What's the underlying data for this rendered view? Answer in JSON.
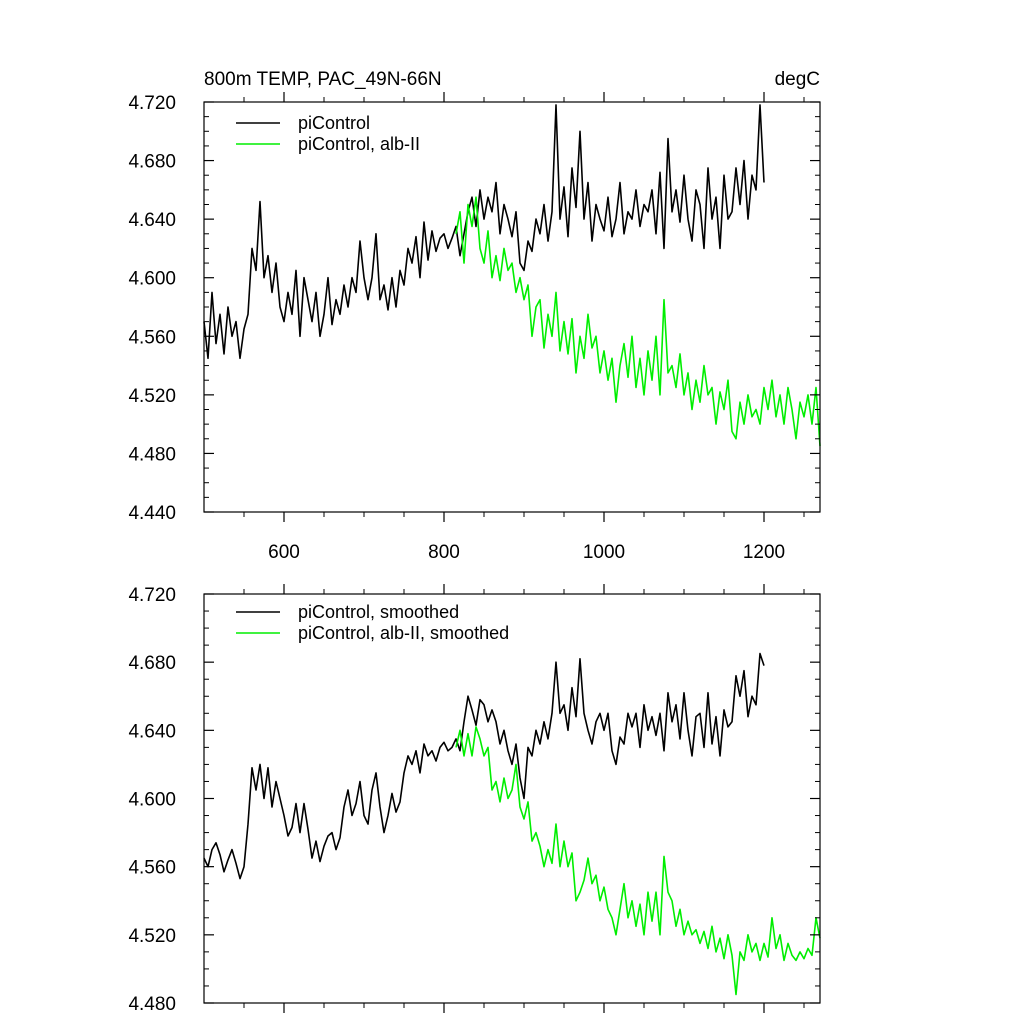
{
  "colors": {
    "control": "#000000",
    "alb": "#00ee00",
    "axis": "#000000",
    "background": "#ffffff"
  },
  "chart_data": [
    {
      "type": "line",
      "title": "800m TEMP, PAC_49N-66N",
      "units": "degC",
      "xlim": [
        500,
        1270
      ],
      "ylim": [
        4.44,
        4.72
      ],
      "x_ticks": [
        600,
        800,
        1000,
        1200
      ],
      "x_tick_labels": [
        "600",
        "800",
        "1000",
        "1200"
      ],
      "y_ticks": [
        4.44,
        4.48,
        4.52,
        4.56,
        4.6,
        4.64,
        4.68,
        4.72
      ],
      "y_tick_labels": [
        "4.440",
        "4.480",
        "4.520",
        "4.560",
        "4.600",
        "4.640",
        "4.680",
        "4.720"
      ],
      "legend_position": "top-left",
      "series": [
        {
          "name": "piControl",
          "color": "#000000",
          "x": [
            500,
            505,
            510,
            515,
            520,
            525,
            530,
            535,
            540,
            545,
            550,
            555,
            560,
            565,
            570,
            575,
            580,
            585,
            590,
            595,
            600,
            605,
            610,
            615,
            620,
            625,
            630,
            635,
            640,
            645,
            650,
            655,
            660,
            665,
            670,
            675,
            680,
            685,
            690,
            695,
            700,
            705,
            710,
            715,
            720,
            725,
            730,
            735,
            740,
            745,
            750,
            755,
            760,
            765,
            770,
            775,
            780,
            785,
            790,
            795,
            800,
            805,
            810,
            815,
            820,
            825,
            830,
            835,
            840,
            845,
            850,
            855,
            860,
            865,
            870,
            875,
            880,
            885,
            890,
            895,
            900,
            905,
            910,
            915,
            920,
            925,
            930,
            935,
            940,
            945,
            950,
            955,
            960,
            965,
            970,
            975,
            980,
            985,
            990,
            995,
            1000,
            1005,
            1010,
            1015,
            1020,
            1025,
            1030,
            1035,
            1040,
            1045,
            1050,
            1055,
            1060,
            1065,
            1070,
            1075,
            1080,
            1085,
            1090,
            1095,
            1100,
            1105,
            1110,
            1115,
            1120,
            1125,
            1130,
            1135,
            1140,
            1145,
            1150,
            1155,
            1160,
            1165,
            1170,
            1175,
            1180,
            1185,
            1190,
            1195,
            1200
          ],
          "y": [
            4.57,
            4.545,
            4.59,
            4.555,
            4.575,
            4.548,
            4.58,
            4.56,
            4.57,
            4.545,
            4.565,
            4.575,
            4.62,
            4.605,
            4.652,
            4.6,
            4.615,
            4.59,
            4.61,
            4.58,
            4.57,
            4.59,
            4.575,
            4.605,
            4.56,
            4.6,
            4.585,
            4.57,
            4.59,
            4.56,
            4.575,
            4.6,
            4.568,
            4.585,
            4.575,
            4.595,
            4.58,
            4.6,
            4.59,
            4.625,
            4.6,
            4.585,
            4.6,
            4.63,
            4.585,
            4.595,
            4.578,
            4.6,
            4.58,
            4.605,
            4.595,
            4.62,
            4.61,
            4.628,
            4.6,
            4.638,
            4.612,
            4.632,
            4.618,
            4.627,
            4.63,
            4.62,
            4.627,
            4.635,
            4.615,
            4.63,
            4.645,
            4.655,
            4.635,
            4.66,
            4.64,
            4.655,
            4.645,
            4.665,
            4.63,
            4.65,
            4.64,
            4.628,
            4.645,
            4.61,
            4.605,
            4.625,
            4.618,
            4.64,
            4.63,
            4.65,
            4.625,
            4.645,
            4.718,
            4.64,
            4.662,
            4.628,
            4.675,
            4.648,
            4.7,
            4.64,
            4.665,
            4.625,
            4.65,
            4.64,
            4.632,
            4.655,
            4.628,
            4.64,
            4.665,
            4.63,
            4.645,
            4.64,
            4.66,
            4.635,
            4.65,
            4.645,
            4.66,
            4.63,
            4.672,
            4.62,
            4.695,
            4.645,
            4.66,
            4.638,
            4.67,
            4.64,
            4.625,
            4.66,
            4.65,
            4.62,
            4.675,
            4.64,
            4.655,
            4.62,
            4.67,
            4.64,
            4.645,
            4.675,
            4.65,
            4.68,
            4.64,
            4.67,
            4.66,
            4.718,
            4.665
          ]
        },
        {
          "name": "piControl, alb-II",
          "color": "#00ee00",
          "x": [
            815,
            820,
            825,
            830,
            835,
            840,
            845,
            850,
            855,
            860,
            865,
            870,
            875,
            880,
            885,
            890,
            895,
            900,
            905,
            910,
            915,
            920,
            925,
            930,
            935,
            940,
            945,
            950,
            955,
            960,
            965,
            970,
            975,
            980,
            985,
            990,
            995,
            1000,
            1005,
            1010,
            1015,
            1020,
            1025,
            1030,
            1035,
            1040,
            1045,
            1050,
            1055,
            1060,
            1065,
            1070,
            1075,
            1080,
            1085,
            1090,
            1095,
            1100,
            1105,
            1110,
            1115,
            1120,
            1125,
            1130,
            1135,
            1140,
            1145,
            1150,
            1155,
            1160,
            1165,
            1170,
            1175,
            1180,
            1185,
            1190,
            1195,
            1200,
            1205,
            1210,
            1215,
            1220,
            1225,
            1230,
            1235,
            1240,
            1245,
            1250,
            1255,
            1260,
            1265,
            1270
          ],
          "y": [
            4.63,
            4.645,
            4.61,
            4.65,
            4.635,
            4.655,
            4.62,
            4.61,
            4.632,
            4.6,
            4.615,
            4.598,
            4.62,
            4.605,
            4.61,
            4.59,
            4.6,
            4.585,
            4.595,
            4.56,
            4.58,
            4.585,
            4.552,
            4.575,
            4.56,
            4.59,
            4.55,
            4.57,
            4.548,
            4.572,
            4.535,
            4.56,
            4.545,
            4.575,
            4.552,
            4.56,
            4.535,
            4.55,
            4.53,
            4.545,
            4.515,
            4.54,
            4.555,
            4.532,
            4.56,
            4.525,
            4.545,
            4.52,
            4.55,
            4.53,
            4.56,
            4.52,
            4.585,
            4.535,
            4.54,
            4.525,
            4.548,
            4.52,
            4.535,
            4.51,
            4.53,
            4.515,
            4.54,
            4.52,
            4.525,
            4.5,
            4.522,
            4.51,
            4.53,
            4.495,
            4.49,
            4.515,
            4.5,
            4.52,
            4.505,
            4.51,
            4.5,
            4.525,
            4.51,
            4.53,
            4.505,
            4.52,
            4.5,
            4.525,
            4.51,
            4.49,
            4.515,
            4.505,
            4.52,
            4.5,
            4.525,
            4.485
          ]
        }
      ]
    },
    {
      "type": "line",
      "xlim": [
        500,
        1270
      ],
      "ylim": [
        4.48,
        4.72
      ],
      "x_ticks": [
        600,
        800,
        1000,
        1200
      ],
      "y_ticks": [
        4.48,
        4.52,
        4.56,
        4.6,
        4.64,
        4.68,
        4.72
      ],
      "y_tick_labels": [
        "4.480",
        "4.520",
        "4.560",
        "4.600",
        "4.640",
        "4.680",
        "4.720"
      ],
      "legend_position": "top-left",
      "series": [
        {
          "name": "piControl, smoothed",
          "color": "#000000",
          "x": [
            500,
            505,
            510,
            515,
            520,
            525,
            530,
            535,
            540,
            545,
            550,
            555,
            560,
            565,
            570,
            575,
            580,
            585,
            590,
            595,
            600,
            605,
            610,
            615,
            620,
            625,
            630,
            635,
            640,
            645,
            650,
            655,
            660,
            665,
            670,
            675,
            680,
            685,
            690,
            695,
            700,
            705,
            710,
            715,
            720,
            725,
            730,
            735,
            740,
            745,
            750,
            755,
            760,
            765,
            770,
            775,
            780,
            785,
            790,
            795,
            800,
            805,
            810,
            815,
            820,
            825,
            830,
            835,
            840,
            845,
            850,
            855,
            860,
            865,
            870,
            875,
            880,
            885,
            890,
            895,
            900,
            905,
            910,
            915,
            920,
            925,
            930,
            935,
            940,
            945,
            950,
            955,
            960,
            965,
            970,
            975,
            980,
            985,
            990,
            995,
            1000,
            1005,
            1010,
            1015,
            1020,
            1025,
            1030,
            1035,
            1040,
            1045,
            1050,
            1055,
            1060,
            1065,
            1070,
            1075,
            1080,
            1085,
            1090,
            1095,
            1100,
            1105,
            1110,
            1115,
            1120,
            1125,
            1130,
            1135,
            1140,
            1145,
            1150,
            1155,
            1160,
            1165,
            1170,
            1175,
            1180,
            1185,
            1190,
            1195,
            1200
          ],
          "y": [
            4.565,
            4.56,
            4.57,
            4.574,
            4.567,
            4.557,
            4.564,
            4.57,
            4.562,
            4.553,
            4.56,
            4.585,
            4.618,
            4.605,
            4.62,
            4.6,
            4.618,
            4.595,
            4.61,
            4.6,
            4.59,
            4.578,
            4.583,
            4.597,
            4.58,
            4.597,
            4.582,
            4.565,
            4.575,
            4.563,
            4.572,
            4.578,
            4.58,
            4.57,
            4.577,
            4.595,
            4.605,
            4.59,
            4.597,
            4.61,
            4.59,
            4.585,
            4.605,
            4.615,
            4.595,
            4.58,
            4.59,
            4.603,
            4.592,
            4.598,
            4.615,
            4.625,
            4.62,
            4.628,
            4.615,
            4.632,
            4.625,
            4.628,
            4.622,
            4.63,
            4.633,
            4.628,
            4.63,
            4.635,
            4.628,
            4.645,
            4.66,
            4.652,
            4.643,
            4.658,
            4.655,
            4.645,
            4.652,
            4.645,
            4.632,
            4.64,
            4.628,
            4.62,
            4.632,
            4.612,
            4.6,
            4.63,
            4.625,
            4.64,
            4.632,
            4.645,
            4.635,
            4.65,
            4.68,
            4.65,
            4.655,
            4.64,
            4.665,
            4.648,
            4.682,
            4.65,
            4.64,
            4.632,
            4.645,
            4.65,
            4.64,
            4.65,
            4.628,
            4.62,
            4.636,
            4.632,
            4.65,
            4.642,
            4.65,
            4.63,
            4.655,
            4.64,
            4.648,
            4.637,
            4.65,
            4.628,
            4.662,
            4.645,
            4.655,
            4.635,
            4.662,
            4.64,
            4.625,
            4.648,
            4.65,
            4.63,
            4.662,
            4.632,
            4.648,
            4.625,
            4.652,
            4.642,
            4.645,
            4.672,
            4.66,
            4.675,
            4.648,
            4.66,
            4.655,
            4.685,
            4.678
          ]
        },
        {
          "name": "piControl, alb-II, smoothed",
          "color": "#00ee00",
          "x": [
            815,
            820,
            825,
            830,
            835,
            840,
            845,
            850,
            855,
            860,
            865,
            870,
            875,
            880,
            885,
            890,
            895,
            900,
            905,
            910,
            915,
            920,
            925,
            930,
            935,
            940,
            945,
            950,
            955,
            960,
            965,
            970,
            975,
            980,
            985,
            990,
            995,
            1000,
            1005,
            1010,
            1015,
            1020,
            1025,
            1030,
            1035,
            1040,
            1045,
            1050,
            1055,
            1060,
            1065,
            1070,
            1075,
            1080,
            1085,
            1090,
            1095,
            1100,
            1105,
            1110,
            1115,
            1120,
            1125,
            1130,
            1135,
            1140,
            1145,
            1150,
            1155,
            1160,
            1165,
            1170,
            1175,
            1180,
            1185,
            1190,
            1195,
            1200,
            1205,
            1210,
            1215,
            1220,
            1225,
            1230,
            1235,
            1240,
            1245,
            1250,
            1255,
            1260,
            1265,
            1270
          ],
          "y": [
            4.63,
            4.64,
            4.625,
            4.638,
            4.625,
            4.642,
            4.635,
            4.625,
            4.63,
            4.605,
            4.61,
            4.598,
            4.612,
            4.6,
            4.605,
            4.62,
            4.595,
            4.588,
            4.598,
            4.575,
            4.58,
            4.572,
            4.56,
            4.57,
            4.562,
            4.585,
            4.56,
            4.575,
            4.56,
            4.568,
            4.54,
            4.545,
            4.552,
            4.565,
            4.55,
            4.555,
            4.54,
            4.548,
            4.535,
            4.53,
            4.52,
            4.535,
            4.55,
            4.53,
            4.54,
            4.525,
            4.538,
            4.52,
            4.545,
            4.528,
            4.545,
            4.52,
            4.566,
            4.545,
            4.54,
            4.525,
            4.535,
            4.52,
            4.528,
            4.52,
            4.523,
            4.515,
            4.522,
            4.512,
            4.525,
            4.51,
            4.518,
            4.506,
            4.52,
            4.508,
            4.485,
            4.51,
            4.505,
            4.52,
            4.51,
            4.515,
            4.505,
            4.515,
            4.507,
            4.53,
            4.512,
            4.52,
            4.505,
            4.515,
            4.508,
            4.505,
            4.51,
            4.506,
            4.512,
            4.508,
            4.53,
            4.518
          ]
        }
      ]
    }
  ]
}
